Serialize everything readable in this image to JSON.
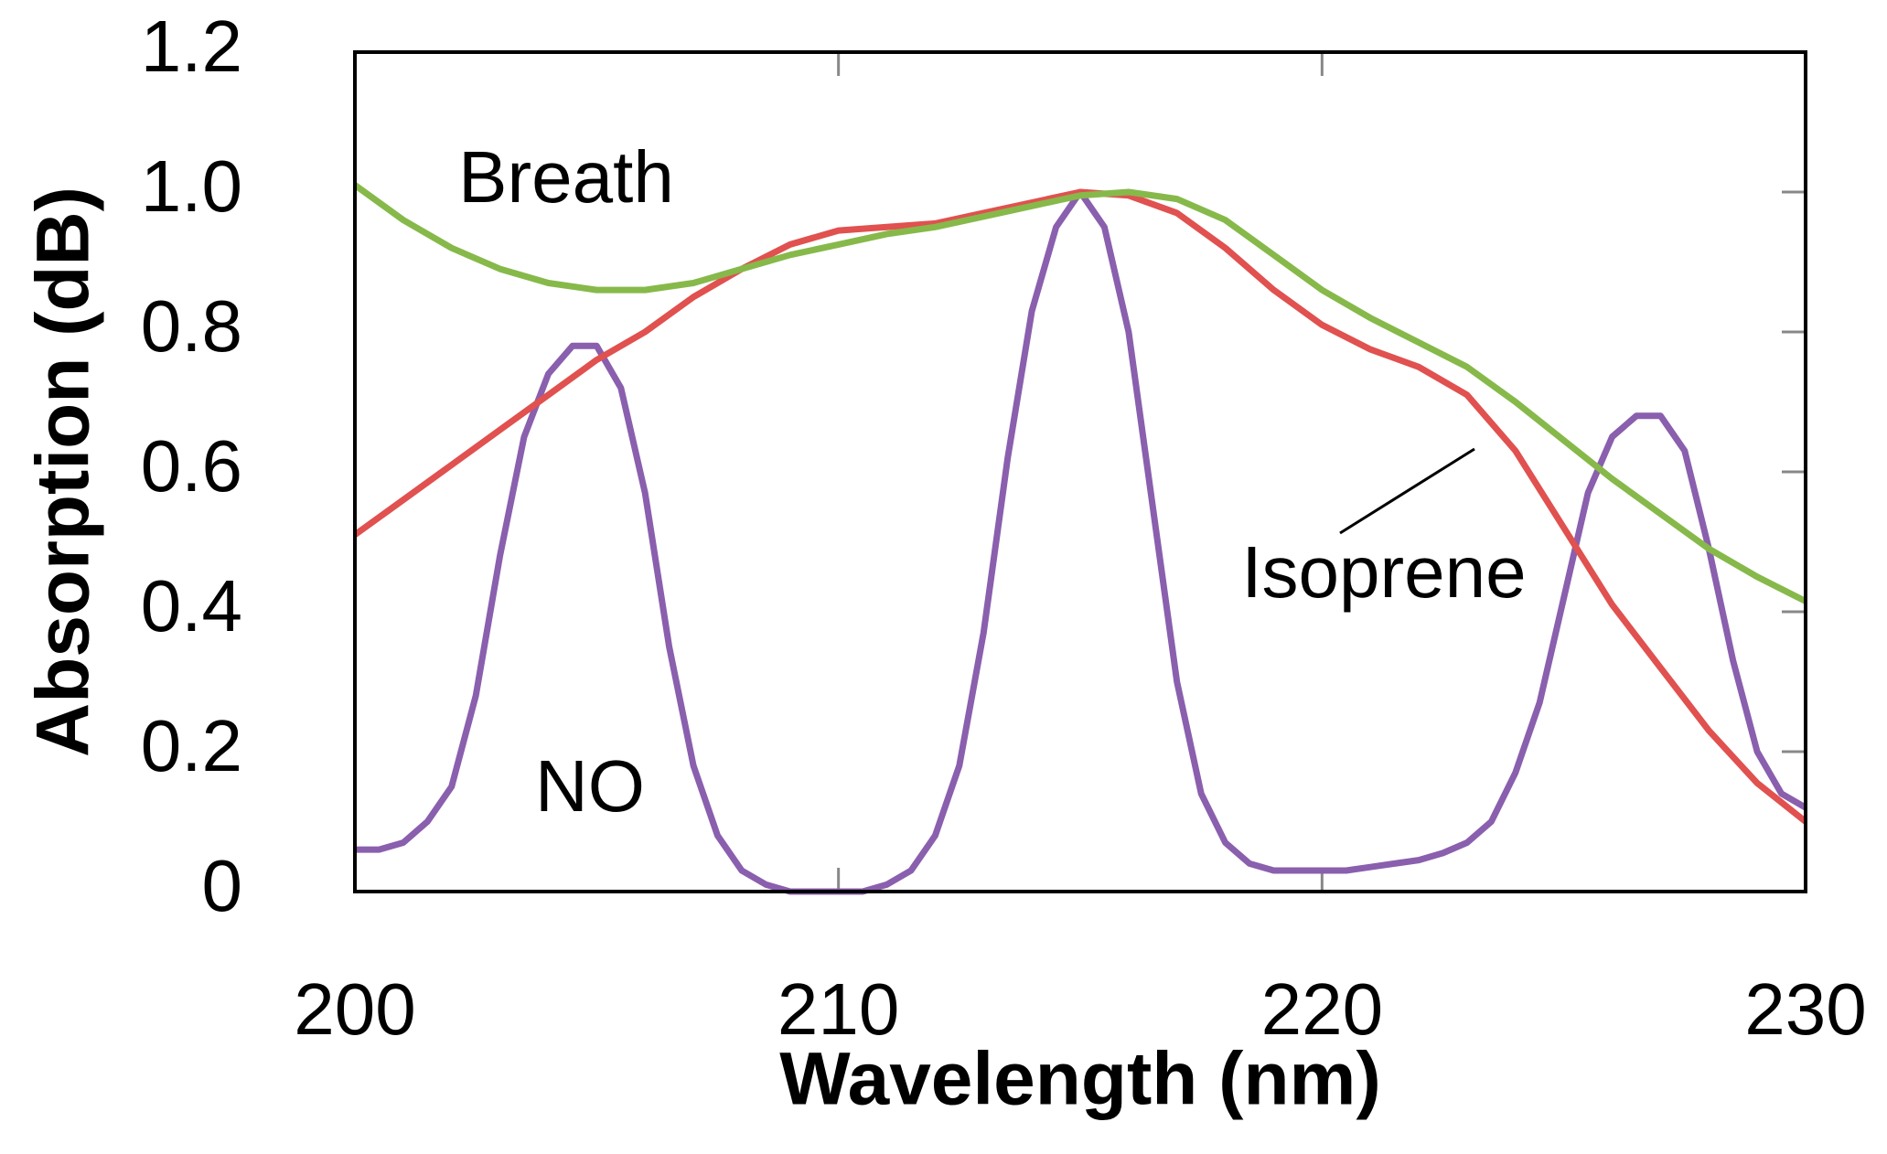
{
  "chart_data": {
    "type": "line",
    "xlabel": "Wavelength (nm)",
    "ylabel": "Absorption (dB)",
    "xlim": [
      200,
      230
    ],
    "ylim": [
      0,
      1.2
    ],
    "xticks": [
      200,
      210,
      220,
      230
    ],
    "yticks": [
      0,
      0.2,
      0.4,
      0.6,
      0.8,
      {
        "value": 1.0,
        "label": "1.0"
      },
      1.2
    ],
    "series": [
      {
        "name": "Breath",
        "color": "#86b94a",
        "x": [
          200,
          201,
          202,
          203,
          204,
          205,
          206,
          207,
          208,
          209,
          210,
          211,
          212,
          213,
          214,
          215,
          216,
          217,
          218,
          219,
          220,
          221,
          222,
          223,
          224,
          225,
          226,
          227,
          228,
          229,
          230
        ],
        "values": [
          1.01,
          0.96,
          0.92,
          0.89,
          0.87,
          0.86,
          0.86,
          0.87,
          0.89,
          0.91,
          0.925,
          0.94,
          0.95,
          0.965,
          0.98,
          0.995,
          1.0,
          0.99,
          0.96,
          0.91,
          0.86,
          0.82,
          0.785,
          0.75,
          0.7,
          0.645,
          0.59,
          0.54,
          0.49,
          0.45,
          0.415
        ]
      },
      {
        "name": "Isoprene",
        "color": "#e0514f",
        "x": [
          200,
          201,
          202,
          203,
          204,
          205,
          206,
          207,
          208,
          209,
          210,
          211,
          212,
          213,
          214,
          215,
          216,
          217,
          218,
          219,
          220,
          221,
          222,
          223,
          224,
          225,
          226,
          227,
          228,
          229,
          230
        ],
        "values": [
          0.51,
          0.56,
          0.61,
          0.66,
          0.71,
          0.76,
          0.8,
          0.85,
          0.89,
          0.925,
          0.945,
          0.95,
          0.955,
          0.97,
          0.985,
          1.0,
          0.995,
          0.97,
          0.92,
          0.86,
          0.81,
          0.775,
          0.75,
          0.71,
          0.63,
          0.52,
          0.41,
          0.32,
          0.23,
          0.155,
          0.1
        ]
      },
      {
        "name": "NO",
        "color": "#8a5fae",
        "x": [
          200,
          200.5,
          201,
          201.5,
          202,
          202.5,
          203,
          203.5,
          204,
          204.5,
          205,
          205.5,
          206,
          206.5,
          207,
          207.5,
          208,
          208.5,
          209,
          209.5,
          210,
          210.5,
          211,
          211.5,
          212,
          212.5,
          213,
          213.5,
          214,
          214.5,
          215,
          215.5,
          216,
          216.5,
          217,
          217.5,
          218,
          218.5,
          219,
          219.5,
          220,
          220.5,
          221,
          221.5,
          222,
          222.5,
          223,
          223.5,
          224,
          224.5,
          225,
          225.5,
          226,
          226.5,
          227,
          227.5,
          228,
          228.5,
          229,
          229.5,
          230
        ],
        "values": [
          0.06,
          0.06,
          0.07,
          0.1,
          0.15,
          0.28,
          0.48,
          0.65,
          0.74,
          0.78,
          0.78,
          0.72,
          0.57,
          0.35,
          0.18,
          0.08,
          0.03,
          0.01,
          0.0,
          0.0,
          0.0,
          0.0,
          0.01,
          0.03,
          0.08,
          0.18,
          0.37,
          0.62,
          0.83,
          0.95,
          1.0,
          0.95,
          0.8,
          0.55,
          0.3,
          0.14,
          0.07,
          0.04,
          0.03,
          0.03,
          0.03,
          0.03,
          0.035,
          0.04,
          0.045,
          0.055,
          0.07,
          0.1,
          0.17,
          0.27,
          0.42,
          0.57,
          0.65,
          0.68,
          0.68,
          0.63,
          0.49,
          0.33,
          0.2,
          0.14,
          0.12
        ]
      }
    ],
    "annotations": [
      {
        "text": "Breath",
        "color": "#86b94a"
      },
      {
        "text": "Isoprene",
        "color": "#e0514f"
      },
      {
        "text": "NO",
        "color": "#8a5fae"
      }
    ]
  }
}
